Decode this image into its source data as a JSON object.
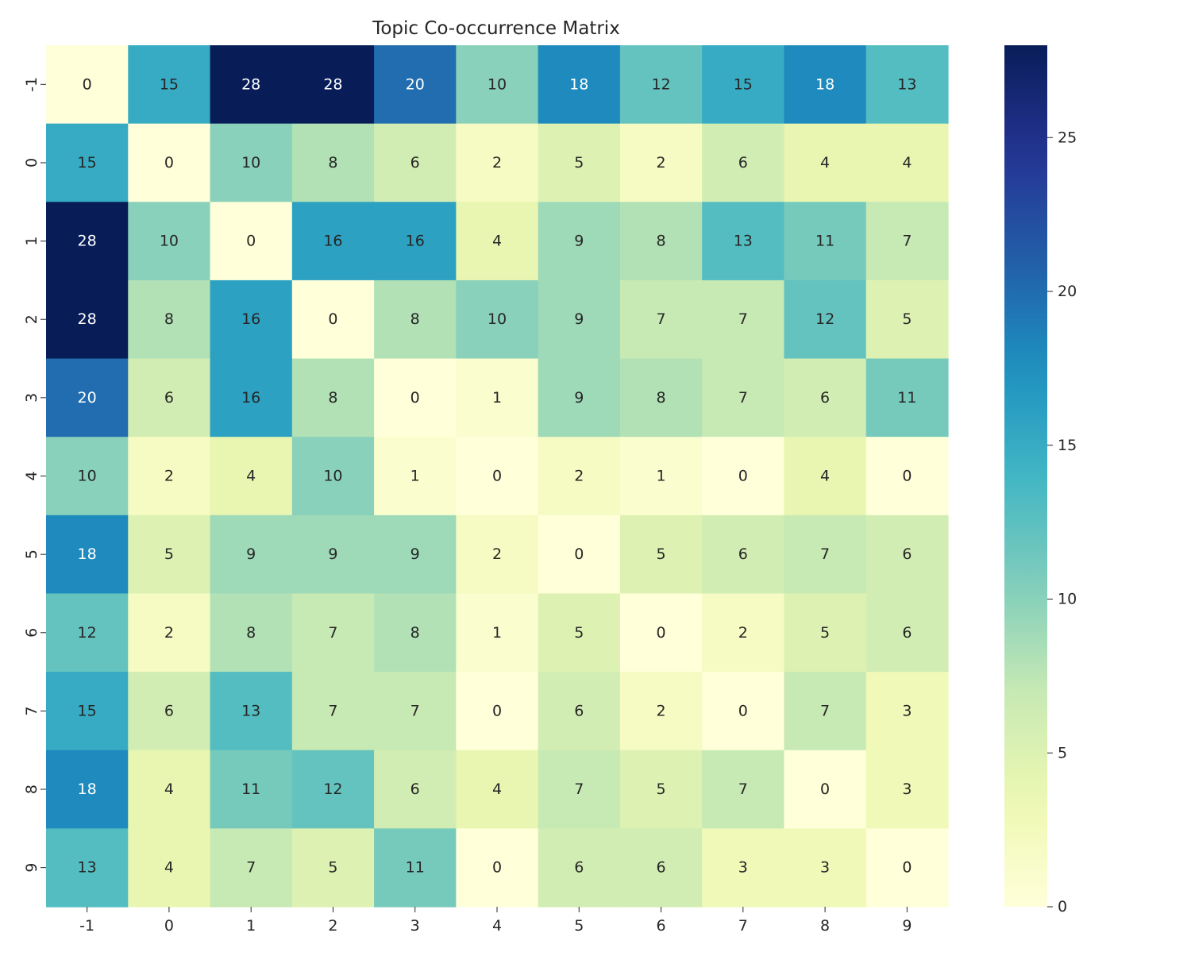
{
  "chart_data": {
    "type": "heatmap",
    "title": "Topic Co-occurrence Matrix",
    "xlabel": "",
    "ylabel": "",
    "x_categories": [
      "-1",
      "0",
      "1",
      "2",
      "3",
      "4",
      "5",
      "6",
      "7",
      "8",
      "9"
    ],
    "y_categories": [
      "-1",
      "0",
      "1",
      "2",
      "3",
      "4",
      "5",
      "6",
      "7",
      "8",
      "9"
    ],
    "values": [
      [
        0,
        15,
        28,
        28,
        20,
        10,
        18,
        12,
        15,
        18,
        13
      ],
      [
        15,
        0,
        10,
        8,
        6,
        2,
        5,
        2,
        6,
        4,
        4
      ],
      [
        28,
        10,
        0,
        16,
        16,
        4,
        9,
        8,
        13,
        11,
        7
      ],
      [
        28,
        8,
        16,
        0,
        8,
        10,
        9,
        7,
        7,
        12,
        5
      ],
      [
        20,
        6,
        16,
        8,
        0,
        1,
        9,
        8,
        7,
        6,
        11
      ],
      [
        10,
        2,
        4,
        10,
        1,
        0,
        2,
        1,
        0,
        4,
        0
      ],
      [
        18,
        5,
        9,
        9,
        9,
        2,
        0,
        5,
        6,
        7,
        6
      ],
      [
        12,
        2,
        8,
        7,
        8,
        1,
        5,
        0,
        2,
        5,
        6
      ],
      [
        15,
        6,
        13,
        7,
        7,
        0,
        6,
        2,
        0,
        7,
        3
      ],
      [
        18,
        4,
        11,
        12,
        6,
        4,
        7,
        5,
        7,
        0,
        3
      ],
      [
        13,
        4,
        7,
        5,
        11,
        0,
        6,
        6,
        3,
        3,
        0
      ]
    ],
    "colormap": "YlGnBu",
    "colorbar": {
      "range": [
        0,
        28
      ],
      "ticks": [
        "0",
        "5",
        "10",
        "15",
        "20",
        "25"
      ]
    },
    "annotations": true,
    "grid": false,
    "legend": "colorbar-right"
  }
}
